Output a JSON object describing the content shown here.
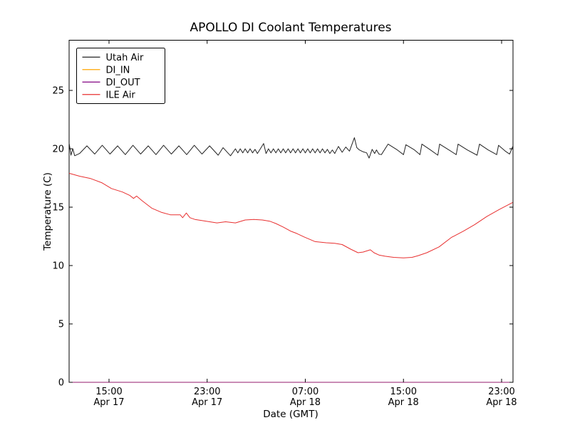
{
  "figure": {
    "background": "#ffffff"
  },
  "chart_data": {
    "type": "line",
    "title": "APOLLO DI Coolant Temperatures",
    "xlabel": "Date (GMT)",
    "ylabel": "Temperature (C)",
    "x_unit": "hours since Apr 17 00:00 GMT",
    "xlim": [
      11.75,
      47.93
    ],
    "ylim": [
      0,
      29.3
    ],
    "grid": false,
    "legend_position": "upper left",
    "axis_color": "#000000",
    "y_ticks": {
      "values": [
        0,
        5,
        10,
        15,
        20,
        25
      ],
      "labels": [
        "0",
        "5",
        "10",
        "15",
        "20",
        "25"
      ]
    },
    "x_ticks": {
      "values": [
        15,
        23,
        31,
        39,
        47
      ],
      "labels": [
        [
          "15:00",
          "Apr 17"
        ],
        [
          "23:00",
          "Apr 17"
        ],
        [
          "07:00",
          "Apr 18"
        ],
        [
          "15:00",
          "Apr 18"
        ],
        [
          "23:00",
          "Apr 18"
        ]
      ]
    },
    "series": [
      {
        "name": "Utah Air",
        "color": "#222222",
        "points": [
          [
            11.75,
            20.5
          ],
          [
            11.9,
            19.45
          ],
          [
            12.05,
            20.0
          ],
          [
            12.2,
            19.4
          ],
          [
            12.6,
            19.6
          ],
          [
            13.2,
            20.25
          ],
          [
            13.83,
            19.55
          ],
          [
            14.45,
            20.3
          ],
          [
            15.08,
            19.55
          ],
          [
            15.7,
            20.25
          ],
          [
            16.33,
            19.5
          ],
          [
            16.95,
            20.3
          ],
          [
            17.58,
            19.55
          ],
          [
            18.2,
            20.25
          ],
          [
            18.83,
            19.5
          ],
          [
            19.45,
            20.3
          ],
          [
            20.08,
            19.55
          ],
          [
            20.7,
            20.25
          ],
          [
            21.33,
            19.5
          ],
          [
            21.95,
            20.3
          ],
          [
            22.58,
            19.55
          ],
          [
            23.2,
            20.25
          ],
          [
            23.9,
            19.45
          ],
          [
            24.3,
            20.1
          ],
          [
            24.9,
            19.4
          ],
          [
            25.3,
            20.0
          ],
          [
            25.5,
            19.65
          ],
          [
            25.7,
            20.0
          ],
          [
            25.9,
            19.65
          ],
          [
            26.1,
            20.0
          ],
          [
            26.3,
            19.65
          ],
          [
            26.5,
            20.0
          ],
          [
            26.7,
            19.65
          ],
          [
            26.9,
            19.95
          ],
          [
            27.1,
            19.6
          ],
          [
            27.6,
            20.45
          ],
          [
            27.8,
            19.6
          ],
          [
            28.0,
            20.0
          ],
          [
            28.2,
            19.65
          ],
          [
            28.4,
            20.0
          ],
          [
            28.6,
            19.65
          ],
          [
            28.8,
            20.0
          ],
          [
            29.0,
            19.65
          ],
          [
            29.2,
            20.0
          ],
          [
            29.4,
            19.65
          ],
          [
            29.6,
            20.0
          ],
          [
            29.8,
            19.65
          ],
          [
            30.0,
            20.0
          ],
          [
            30.2,
            19.65
          ],
          [
            30.4,
            20.0
          ],
          [
            30.6,
            19.65
          ],
          [
            30.8,
            20.0
          ],
          [
            31.0,
            19.65
          ],
          [
            31.2,
            20.0
          ],
          [
            31.4,
            19.65
          ],
          [
            31.6,
            20.0
          ],
          [
            31.8,
            19.65
          ],
          [
            32.0,
            20.0
          ],
          [
            32.2,
            19.65
          ],
          [
            32.4,
            20.0
          ],
          [
            32.6,
            19.65
          ],
          [
            32.8,
            19.95
          ],
          [
            33.0,
            19.6
          ],
          [
            33.2,
            19.9
          ],
          [
            33.4,
            19.6
          ],
          [
            33.7,
            20.2
          ],
          [
            34.0,
            19.7
          ],
          [
            34.3,
            20.15
          ],
          [
            34.6,
            19.8
          ],
          [
            35.0,
            20.95
          ],
          [
            35.2,
            20.1
          ],
          [
            35.4,
            19.9
          ],
          [
            35.7,
            19.75
          ],
          [
            36.0,
            19.65
          ],
          [
            36.2,
            19.2
          ],
          [
            36.45,
            19.95
          ],
          [
            36.65,
            19.6
          ],
          [
            36.8,
            19.9
          ],
          [
            37.0,
            19.55
          ],
          [
            37.2,
            19.5
          ],
          [
            37.75,
            20.4
          ],
          [
            38.5,
            19.9
          ],
          [
            39.0,
            19.5
          ],
          [
            39.2,
            20.35
          ],
          [
            39.9,
            19.9
          ],
          [
            40.35,
            19.5
          ],
          [
            40.5,
            20.4
          ],
          [
            41.2,
            19.9
          ],
          [
            41.8,
            19.45
          ],
          [
            41.95,
            20.4
          ],
          [
            42.7,
            19.9
          ],
          [
            43.3,
            19.5
          ],
          [
            43.45,
            20.4
          ],
          [
            44.2,
            19.9
          ],
          [
            45.0,
            19.45
          ],
          [
            45.2,
            20.4
          ],
          [
            45.9,
            19.9
          ],
          [
            46.6,
            19.5
          ],
          [
            46.75,
            20.3
          ],
          [
            47.3,
            19.8
          ],
          [
            47.65,
            19.55
          ],
          [
            47.93,
            20.25
          ]
        ]
      },
      {
        "name": "DI_IN",
        "color": "#ffa500",
        "points": [
          [
            11.75,
            0
          ],
          [
            47.93,
            0
          ]
        ],
        "note": "constant 0, lies on x-axis"
      },
      {
        "name": "DI_OUT",
        "color": "#800080",
        "points": [
          [
            11.75,
            0
          ],
          [
            47.93,
            0
          ]
        ],
        "note": "constant 0, lies on x-axis"
      },
      {
        "name": "ILE Air",
        "color": "#e83030",
        "points": [
          [
            11.75,
            17.9
          ],
          [
            12.6,
            17.65
          ],
          [
            13.5,
            17.45
          ],
          [
            14.4,
            17.1
          ],
          [
            15.2,
            16.6
          ],
          [
            16.1,
            16.3
          ],
          [
            16.7,
            16.0
          ],
          [
            17.0,
            15.75
          ],
          [
            17.25,
            15.95
          ],
          [
            17.7,
            15.55
          ],
          [
            18.5,
            14.9
          ],
          [
            19.3,
            14.55
          ],
          [
            20.0,
            14.35
          ],
          [
            20.8,
            14.35
          ],
          [
            21.0,
            14.1
          ],
          [
            21.3,
            14.5
          ],
          [
            21.6,
            14.1
          ],
          [
            22.0,
            13.95
          ],
          [
            22.6,
            13.85
          ],
          [
            23.2,
            13.75
          ],
          [
            23.8,
            13.65
          ],
          [
            24.5,
            13.75
          ],
          [
            25.3,
            13.65
          ],
          [
            26.1,
            13.9
          ],
          [
            26.8,
            13.95
          ],
          [
            27.5,
            13.9
          ],
          [
            28.1,
            13.8
          ],
          [
            28.6,
            13.6
          ],
          [
            29.2,
            13.3
          ],
          [
            29.8,
            12.95
          ],
          [
            30.3,
            12.75
          ],
          [
            30.9,
            12.45
          ],
          [
            31.8,
            12.05
          ],
          [
            32.7,
            11.95
          ],
          [
            33.4,
            11.9
          ],
          [
            34.0,
            11.8
          ],
          [
            34.7,
            11.4
          ],
          [
            35.3,
            11.1
          ],
          [
            35.7,
            11.15
          ],
          [
            36.3,
            11.35
          ],
          [
            36.6,
            11.1
          ],
          [
            37.0,
            10.9
          ],
          [
            37.5,
            10.8
          ],
          [
            38.2,
            10.7
          ],
          [
            39.0,
            10.65
          ],
          [
            39.7,
            10.7
          ],
          [
            40.2,
            10.85
          ],
          [
            40.9,
            11.1
          ],
          [
            41.9,
            11.6
          ],
          [
            42.9,
            12.4
          ],
          [
            43.9,
            12.95
          ],
          [
            44.8,
            13.5
          ],
          [
            45.8,
            14.2
          ],
          [
            46.8,
            14.8
          ],
          [
            47.9,
            15.4
          ]
        ]
      }
    ]
  }
}
